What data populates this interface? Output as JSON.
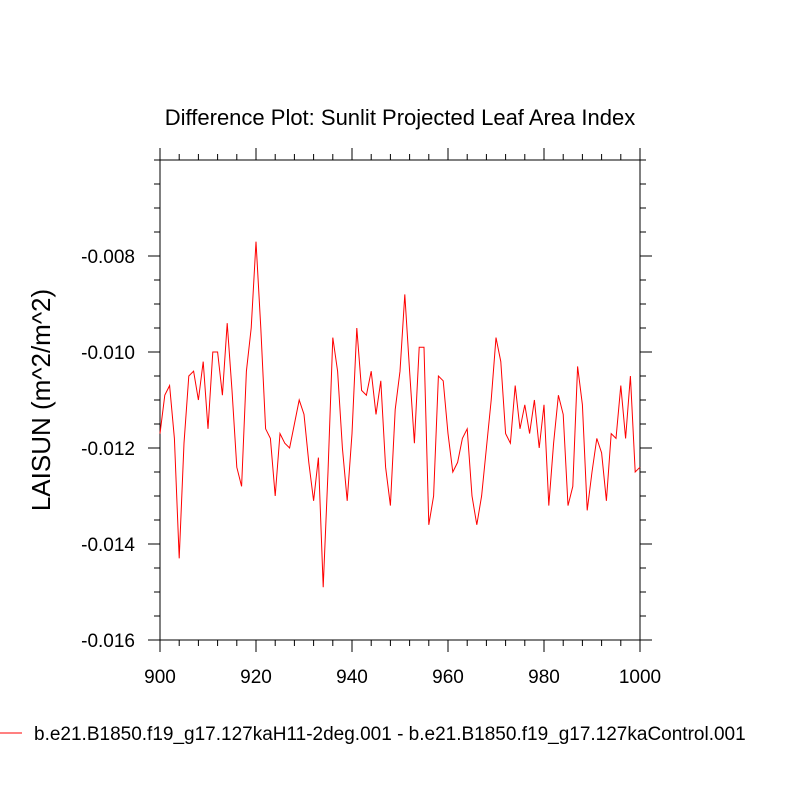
{
  "chart_data": {
    "type": "line",
    "title": "Difference Plot: Sunlit Projected Leaf Area Index",
    "xlabel": "",
    "ylabel": "LAISUN  (m^2/m^2)",
    "xlim": [
      900,
      1000
    ],
    "ylim": [
      -0.016,
      -0.006
    ],
    "x_ticks": [
      900,
      920,
      940,
      960,
      980,
      1000
    ],
    "x_tick_labels": [
      "900",
      "920",
      "940",
      "960",
      "980",
      "1000"
    ],
    "y_ticks": [
      -0.016,
      -0.014,
      -0.012,
      -0.01,
      -0.008
    ],
    "y_tick_labels": [
      "-0.016",
      "-0.014",
      "-0.012",
      "-0.010",
      "-0.008"
    ],
    "grid": false,
    "legend_position": "bottom",
    "series": [
      {
        "name": "b.e21.B1850.f19_g17.127kaH11-2deg.001 - b.e21.B1850.f19_g17.127kaControl.001",
        "color": "#ff0000",
        "x": [
          900,
          901,
          902,
          903,
          904,
          905,
          906,
          907,
          908,
          909,
          910,
          911,
          912,
          913,
          914,
          915,
          916,
          917,
          918,
          919,
          920,
          921,
          922,
          923,
          924,
          925,
          926,
          927,
          928,
          929,
          930,
          931,
          932,
          933,
          934,
          935,
          936,
          937,
          938,
          939,
          940,
          941,
          942,
          943,
          944,
          945,
          946,
          947,
          948,
          949,
          950,
          951,
          952,
          953,
          954,
          955,
          956,
          957,
          958,
          959,
          960,
          961,
          962,
          963,
          964,
          965,
          966,
          967,
          968,
          969,
          970,
          971,
          972,
          973,
          974,
          975,
          976,
          977,
          978,
          979,
          980,
          981,
          982,
          983,
          984,
          985,
          986,
          987,
          988,
          989,
          990,
          991,
          992,
          993,
          994,
          995,
          996,
          997,
          998,
          999,
          1000
        ],
        "values": [
          -0.0117,
          -0.0109,
          -0.0107,
          -0.0118,
          -0.0143,
          -0.0119,
          -0.0105,
          -0.0104,
          -0.011,
          -0.0102,
          -0.0116,
          -0.01,
          -0.01,
          -0.0109,
          -0.0094,
          -0.0108,
          -0.0124,
          -0.0128,
          -0.0104,
          -0.0095,
          -0.0077,
          -0.0095,
          -0.0116,
          -0.0118,
          -0.013,
          -0.0117,
          -0.0119,
          -0.012,
          -0.0115,
          -0.011,
          -0.0113,
          -0.0123,
          -0.0131,
          -0.0122,
          -0.0149,
          -0.0125,
          -0.0097,
          -0.0104,
          -0.012,
          -0.0131,
          -0.0117,
          -0.0095,
          -0.0108,
          -0.0109,
          -0.0104,
          -0.0113,
          -0.0106,
          -0.0124,
          -0.0132,
          -0.0112,
          -0.0104,
          -0.0088,
          -0.0104,
          -0.0119,
          -0.0099,
          -0.0099,
          -0.0136,
          -0.013,
          -0.0105,
          -0.0106,
          -0.0117,
          -0.0125,
          -0.0123,
          -0.0118,
          -0.0116,
          -0.013,
          -0.0136,
          -0.013,
          -0.012,
          -0.011,
          -0.0097,
          -0.0102,
          -0.0117,
          -0.0119,
          -0.0107,
          -0.0116,
          -0.0111,
          -0.0117,
          -0.011,
          -0.012,
          -0.0111,
          -0.0132,
          -0.0119,
          -0.0109,
          -0.0113,
          -0.0132,
          -0.0128,
          -0.0103,
          -0.0111,
          -0.0133,
          -0.0125,
          -0.0118,
          -0.0121,
          -0.0131,
          -0.0117,
          -0.0118,
          -0.0107,
          -0.0118,
          -0.0105,
          -0.0125,
          -0.0124
        ]
      }
    ]
  }
}
